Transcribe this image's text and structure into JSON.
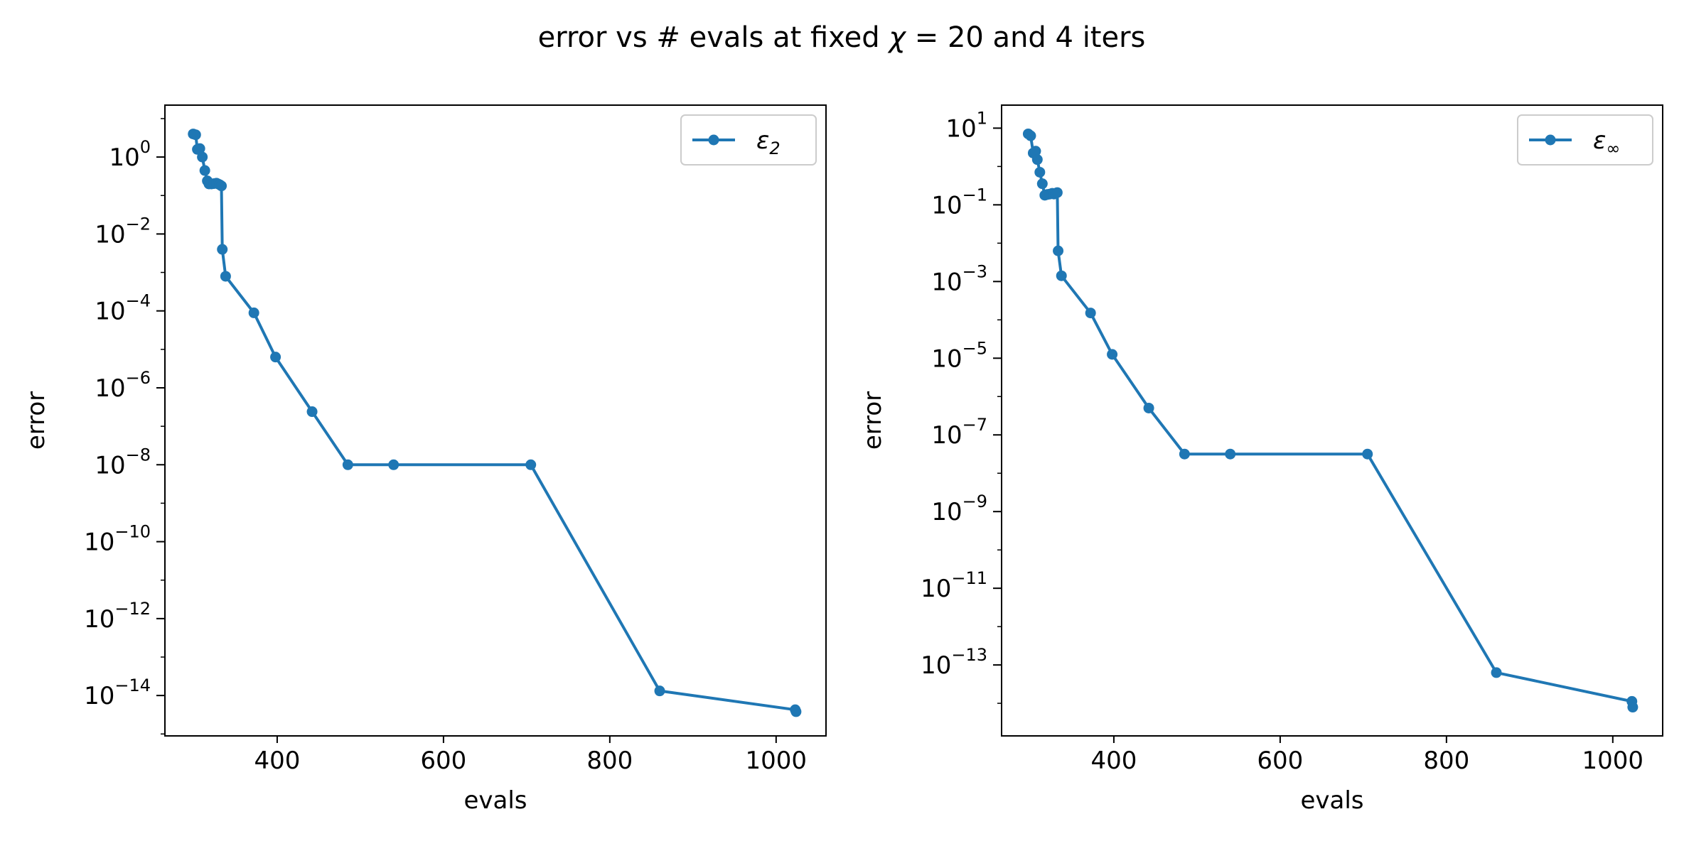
{
  "title": {
    "prefix": "error vs # evals at fixed ",
    "symbol": "χ",
    "suffix": " = 20 and 4 iters"
  },
  "chart_data": [
    {
      "type": "line",
      "xlabel": "evals",
      "ylabel": "error",
      "y_scale": "log",
      "xlim": [
        265,
        1060
      ],
      "ylim_log10": [
        -15.05,
        1.35
      ],
      "x_ticks": [
        400,
        600,
        800,
        1000
      ],
      "y_tick_exponents": [
        0,
        -2,
        -4,
        -6,
        -8,
        -10,
        -12,
        -14
      ],
      "legend": {
        "placement": "upper right",
        "symbol": "ε",
        "subscript": "2"
      },
      "series": [
        {
          "name": "ε2",
          "color": "#1f77b4",
          "x": [
            299,
            302,
            304,
            307,
            310,
            313,
            316,
            318,
            321,
            324,
            327,
            329,
            331,
            333,
            334,
            338,
            372,
            398,
            442,
            485,
            540,
            705,
            860,
            1023,
            1024
          ],
          "log10_y": [
            0.6,
            0.58,
            0.2,
            0.22,
            0.0,
            -0.35,
            -0.62,
            -0.7,
            -0.7,
            -0.69,
            -0.68,
            -0.7,
            -0.72,
            -0.75,
            -2.4,
            -3.1,
            -4.05,
            -5.2,
            -6.62,
            -8.0,
            -8.0,
            -8.0,
            -13.88,
            -14.37,
            -14.42
          ]
        }
      ]
    },
    {
      "type": "line",
      "xlabel": "evals",
      "ylabel": "error",
      "y_scale": "log",
      "xlim": [
        265,
        1060
      ],
      "ylim_log10": [
        -14.85,
        1.6
      ],
      "x_ticks": [
        400,
        600,
        800,
        1000
      ],
      "y_tick_exponents": [
        1,
        -1,
        -3,
        -5,
        -7,
        -9,
        -11,
        -13
      ],
      "legend": {
        "placement": "upper right",
        "symbol": "ε",
        "subscript": "∞"
      },
      "series": [
        {
          "name": "ε∞",
          "color": "#1f77b4",
          "x": [
            297,
            300,
            303,
            306,
            308,
            311,
            314,
            317,
            320,
            323,
            326,
            328,
            330,
            332,
            333,
            337,
            372,
            398,
            442,
            485,
            540,
            705,
            860,
            1023,
            1024
          ],
          "log10_y": [
            0.85,
            0.8,
            0.35,
            0.4,
            0.18,
            -0.15,
            -0.45,
            -0.75,
            -0.73,
            -0.72,
            -0.7,
            -0.72,
            -0.7,
            -0.68,
            -2.2,
            -2.85,
            -3.82,
            -4.9,
            -6.3,
            -7.5,
            -7.5,
            -7.5,
            -13.2,
            -13.95,
            -14.1
          ]
        }
      ]
    }
  ]
}
